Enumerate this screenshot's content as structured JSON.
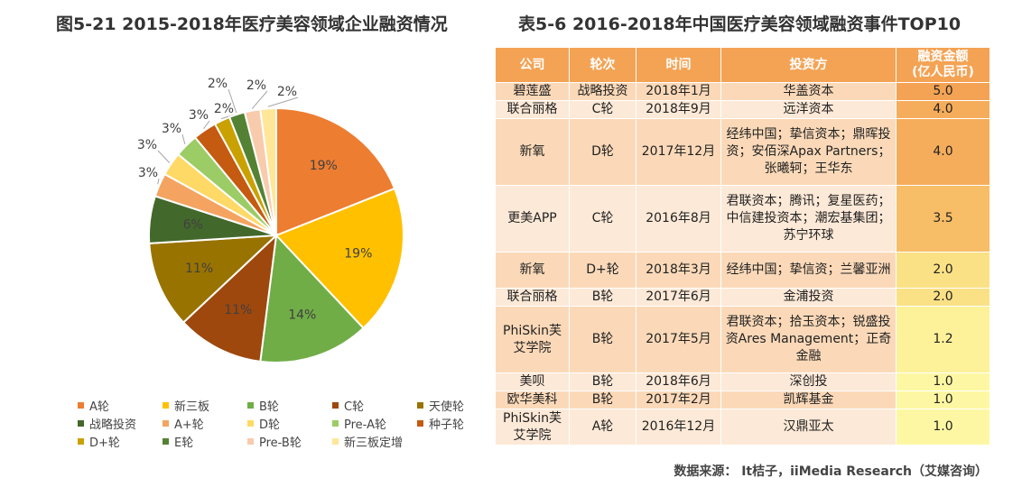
{
  "left_title": "图5-21 2015-2018年医疗美容领域企业融资情况",
  "right_title": "表5-6 2016-2018年中国医疗美容领域融资事件TOP10",
  "source": "数据来源： It桔子，iiMedia Research（艾媒咨询）",
  "chart_data": {
    "type": "pie",
    "start_angle_deg": 0,
    "direction": "clockwise",
    "slices": [
      {
        "name": "A轮",
        "value": 19,
        "label": "19%",
        "color": "#ed7d31"
      },
      {
        "name": "新三板",
        "value": 19,
        "label": "19%",
        "color": "#ffc000"
      },
      {
        "name": "B轮",
        "value": 14,
        "label": "14%",
        "color": "#70ad47"
      },
      {
        "name": "C轮",
        "value": 11,
        "label": "11%",
        "color": "#9e480e"
      },
      {
        "name": "天使轮",
        "value": 11,
        "label": "11%",
        "color": "#997300"
      },
      {
        "name": "战略投资",
        "value": 6,
        "label": "6%",
        "color": "#43682b"
      },
      {
        "name": "A+轮",
        "value": 3,
        "label": "3%",
        "color": "#f4a460"
      },
      {
        "name": "D轮",
        "value": 3,
        "label": "3%",
        "color": "#ffd966"
      },
      {
        "name": "Pre-A轮",
        "value": 3,
        "label": "3%",
        "color": "#9ccc65"
      },
      {
        "name": "种子轮",
        "value": 3,
        "label": "3%",
        "color": "#c55a11"
      },
      {
        "name": "D+轮",
        "value": 2,
        "label": "2%",
        "color": "#c9a100"
      },
      {
        "name": "E轮",
        "value": 2,
        "label": "2%",
        "color": "#548235"
      },
      {
        "name": "Pre-B轮",
        "value": 2,
        "label": "2%",
        "color": "#f8cbad"
      },
      {
        "name": "新三板定增",
        "value": 2,
        "label": "2%",
        "color": "#ffe699"
      }
    ]
  },
  "table": {
    "headers": [
      "公司",
      "轮次",
      "时间",
      "投资方",
      "融资金额\n(亿人民币)"
    ],
    "rows": [
      {
        "company": "碧莲盛",
        "round": "战略投资",
        "date": "2018年1月",
        "investors": "华盖资本",
        "amount": "5.0",
        "amount_color": "#f4a354"
      },
      {
        "company": "联合丽格",
        "round": "C轮",
        "date": "2018年9月",
        "investors": "远洋资本",
        "amount": "4.0",
        "amount_color": "#f6ad5b"
      },
      {
        "company": "新氧",
        "round": "D轮",
        "date": "2017年12月",
        "investors": "经纬中国；挚信资本；鼎晖投资；安佰深Apax Partners；张曦轲；王华东",
        "amount": "4.0",
        "amount_color": "#f6ad5b"
      },
      {
        "company": "更美APP",
        "round": "C轮",
        "date": "2016年8月",
        "investors": "君联资本；腾讯；复星医药； 中信建投资本；潮宏基集团； 苏宁环球",
        "amount": "3.5",
        "amount_color": "#f8bd67"
      },
      {
        "company": "新氧",
        "round": "D+轮",
        "date": "2018年3月",
        "investors": "经纬中国；挚信资；兰馨亚洲",
        "amount": "2.0",
        "amount_color": "#fbe186"
      },
      {
        "company": "联合丽格",
        "round": "B轮",
        "date": "2017年6月",
        "investors": "金浦投资",
        "amount": "2.0",
        "amount_color": "#fbe186"
      },
      {
        "company": "PhiSkin芙艾学院",
        "round": "B轮",
        "date": "2017年5月",
        "investors": "君联资本；拾玉资本；锐盛投资Ares Management；正奇金融",
        "amount": "1.2",
        "amount_color": "#fdf19a"
      },
      {
        "company": "美呗",
        "round": "B轮",
        "date": "2018年6月",
        "investors": "深创投",
        "amount": "1.0",
        "amount_color": "#fdf7a3"
      },
      {
        "company": "欧华美科",
        "round": "B轮",
        "date": "2017年2月",
        "investors": "凯辉基金",
        "amount": "1.0",
        "amount_color": "#fdf7a3"
      },
      {
        "company": "PhiSkin芙艾学院",
        "round": "A轮",
        "date": "2016年12月",
        "investors": "汉鼎亚太",
        "amount": "1.0",
        "amount_color": "#fdf7a3"
      }
    ]
  }
}
